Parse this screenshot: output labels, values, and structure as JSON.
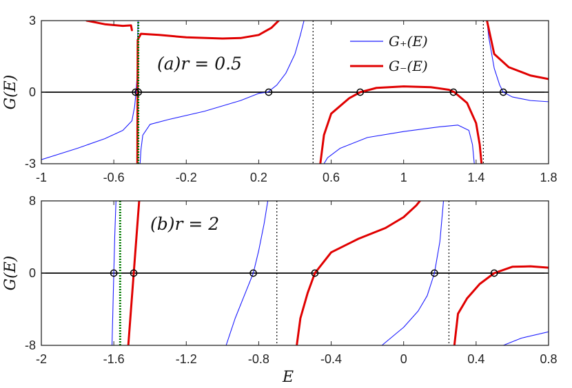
{
  "chart_data": [
    {
      "type": "line",
      "panel": "(a)",
      "annotation": "(a)r = 0.5",
      "ylabel": "G(E)",
      "xlim": [
        -1,
        1.8
      ],
      "ylim": [
        -3,
        3
      ],
      "xticks": [
        "-1",
        "-0.6",
        "-0.2",
        "0.2",
        "0.6",
        "1",
        "1.4",
        "1.8"
      ],
      "yticks": [
        "-3",
        "0",
        "3"
      ],
      "legend": {
        "placement": "top-right",
        "entries": [
          "G₊(E)",
          "G₋(E)"
        ]
      },
      "series": [
        {
          "name": "G₊(E)",
          "color": "#1a1aff",
          "segments": [
            [
              [
                -1.0,
                -2.83
              ],
              [
                -0.8,
                -2.35
              ],
              [
                -0.65,
                -1.95
              ],
              [
                -0.55,
                -1.6
              ],
              [
                -0.5,
                -1.2
              ],
              [
                -0.485,
                -0.6
              ],
              [
                -0.478,
                -0.05
              ],
              [
                -0.472,
                0.6
              ],
              [
                -0.468,
                2.4
              ],
              [
                -0.466,
                3.0
              ]
            ],
            [
              [
                -0.455,
                -3.0
              ],
              [
                -0.45,
                -2.4
              ],
              [
                -0.44,
                -1.8
              ],
              [
                -0.4,
                -1.35
              ],
              [
                -0.3,
                -1.15
              ],
              [
                -0.1,
                -0.8
              ],
              [
                0.1,
                -0.35
              ],
              [
                0.2,
                -0.05
              ],
              [
                0.25,
                0.0
              ],
              [
                0.3,
                0.3
              ],
              [
                0.35,
                0.8
              ],
              [
                0.4,
                1.6
              ],
              [
                0.43,
                2.4
              ],
              [
                0.45,
                3.0
              ]
            ],
            [
              [
                0.56,
                -3.0
              ],
              [
                0.58,
                -2.75
              ],
              [
                0.65,
                -2.35
              ],
              [
                0.8,
                -1.9
              ],
              [
                1.0,
                -1.65
              ],
              [
                1.2,
                -1.45
              ],
              [
                1.3,
                -1.38
              ],
              [
                1.36,
                -1.6
              ],
              [
                1.38,
                -2.2
              ],
              [
                1.39,
                -3.0
              ]
            ],
            [
              [
                1.46,
                3.0
              ],
              [
                1.47,
                2.3
              ],
              [
                1.5,
                1.0
              ],
              [
                1.53,
                0.3
              ],
              [
                1.55,
                0.0
              ],
              [
                1.6,
                -0.2
              ],
              [
                1.7,
                -0.35
              ],
              [
                1.8,
                -0.4
              ]
            ]
          ]
        },
        {
          "name": "G₋(E)",
          "color": "#e00000",
          "segments": [
            [
              [
                -0.75,
                3.0
              ],
              [
                -0.65,
                2.85
              ],
              [
                -0.55,
                2.78
              ],
              [
                -0.505,
                2.8
              ],
              [
                -0.5,
                2.6
              ]
            ],
            [
              [
                -0.47,
                -3.0
              ],
              [
                -0.469,
                0.0
              ],
              [
                -0.468,
                2.2
              ],
              [
                -0.45,
                2.45
              ],
              [
                -0.35,
                2.4
              ],
              [
                -0.2,
                2.3
              ],
              [
                0.0,
                2.25
              ],
              [
                0.1,
                2.27
              ],
              [
                0.2,
                2.4
              ],
              [
                0.27,
                2.7
              ],
              [
                0.31,
                3.0
              ]
            ],
            [
              [
                0.54,
                -3.0
              ],
              [
                0.56,
                -1.8
              ],
              [
                0.6,
                -0.9
              ],
              [
                0.7,
                -0.25
              ],
              [
                0.76,
                0.0
              ],
              [
                0.85,
                0.18
              ],
              [
                1.0,
                0.24
              ],
              [
                1.15,
                0.21
              ],
              [
                1.25,
                0.1
              ],
              [
                1.28,
                0.0
              ],
              [
                1.35,
                -0.45
              ],
              [
                1.4,
                -1.3
              ],
              [
                1.42,
                -2.2
              ],
              [
                1.43,
                -3.0
              ]
            ],
            [
              [
                1.46,
                3.0
              ],
              [
                1.5,
                1.6
              ],
              [
                1.58,
                1.05
              ],
              [
                1.7,
                0.7
              ],
              [
                1.8,
                0.55
              ]
            ]
          ]
        },
        {
          "name": "",
          "color": "#007a00",
          "style": "dotted",
          "segments": [
            [
              [
                -0.465,
                -3.0
              ],
              [
                -0.465,
                3.0
              ]
            ]
          ]
        }
      ],
      "vlines_dotted": [
        0.5,
        1.44
      ],
      "zeros": [
        -0.48,
        -0.465,
        0.255,
        0.76,
        1.275,
        1.55
      ]
    },
    {
      "type": "line",
      "panel": "(b)",
      "annotation": "(b)r = 2",
      "xlabel": "E",
      "ylabel": "G(E)",
      "xlim": [
        -2,
        0.8
      ],
      "ylim": [
        -8,
        8
      ],
      "xticks": [
        "-2",
        "-1.6",
        "-1.2",
        "-0.8",
        "-0.4",
        "0",
        "0.4",
        "0.8"
      ],
      "yticks": [
        "-8",
        "0",
        "8"
      ],
      "series": [
        {
          "name": "G₊(E)",
          "color": "#1a1aff",
          "segments": [
            [
              [
                -1.61,
                -8.0
              ],
              [
                -1.605,
                -4.0
              ],
              [
                -1.6,
                0.0
              ],
              [
                -1.595,
                4.0
              ],
              [
                -1.588,
                8.0
              ]
            ],
            [
              [
                -0.98,
                -8.0
              ],
              [
                -0.93,
                -5.0
              ],
              [
                -0.88,
                -2.5
              ],
              [
                -0.83,
                0.0
              ],
              [
                -0.8,
                2.5
              ],
              [
                -0.77,
                5.5
              ],
              [
                -0.75,
                8.0
              ]
            ],
            [
              [
                -0.12,
                -8.0
              ],
              [
                0.0,
                -6.0
              ],
              [
                0.08,
                -4.2
              ],
              [
                0.13,
                -2.5
              ],
              [
                0.17,
                0.0
              ],
              [
                0.2,
                3.5
              ],
              [
                0.22,
                8.0
              ]
            ],
            [
              [
                0.55,
                -8.0
              ],
              [
                0.65,
                -7.2
              ],
              [
                0.8,
                -6.5
              ]
            ]
          ]
        },
        {
          "name": "G₋(E)",
          "color": "#e00000",
          "segments": [
            [
              [
                -1.52,
                -8.0
              ],
              [
                -1.505,
                -4.0
              ],
              [
                -1.49,
                0.0
              ],
              [
                -1.475,
                4.0
              ],
              [
                -1.46,
                8.0
              ]
            ],
            [
              [
                -0.59,
                -8.0
              ],
              [
                -0.57,
                -5.0
              ],
              [
                -0.53,
                -2.2
              ],
              [
                -0.49,
                0.0
              ],
              [
                -0.4,
                2.3
              ],
              [
                -0.25,
                3.8
              ],
              [
                -0.1,
                5.0
              ],
              [
                0.0,
                6.2
              ],
              [
                0.07,
                7.5
              ],
              [
                0.09,
                8.0
              ]
            ],
            [
              [
                0.28,
                -8.0
              ],
              [
                0.3,
                -4.5
              ],
              [
                0.35,
                -2.8
              ],
              [
                0.42,
                -1.2
              ],
              [
                0.5,
                0.0
              ],
              [
                0.6,
                0.7
              ],
              [
                0.7,
                0.75
              ],
              [
                0.8,
                0.6
              ]
            ]
          ]
        },
        {
          "name": "",
          "color": "#007a00",
          "style": "dotted",
          "segments": [
            [
              [
                -1.565,
                -8.0
              ],
              [
                -1.565,
                8.0
              ]
            ]
          ]
        }
      ],
      "vlines_dotted": [
        -0.7,
        0.25
      ],
      "zeros": [
        -1.6,
        -1.49,
        -0.83,
        -0.49,
        0.17,
        0.5
      ]
    }
  ]
}
